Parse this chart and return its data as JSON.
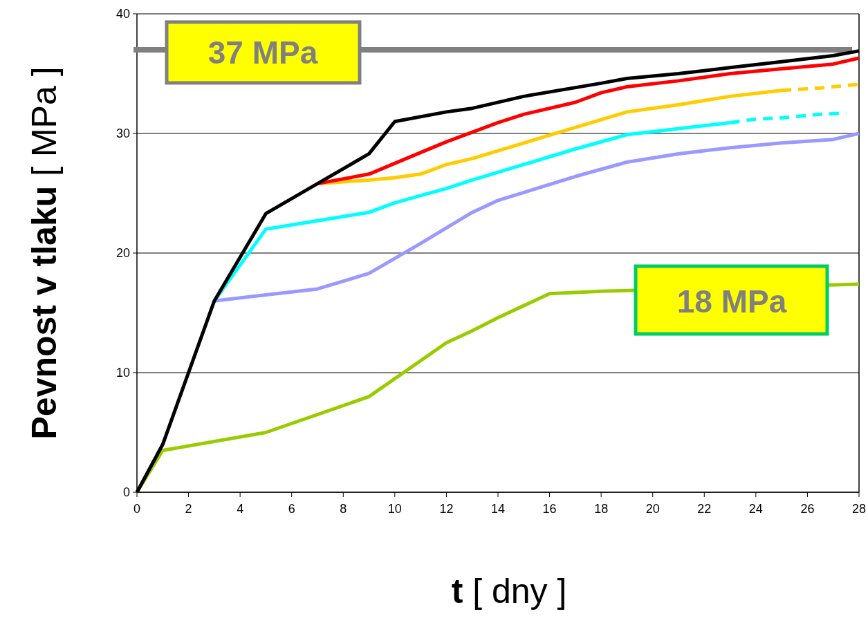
{
  "chart_data": {
    "type": "line",
    "xlabel": "t  [ dny ]",
    "ylabel": "Pevnost  v  tlaku  [ MPa ]",
    "xlim": [
      0,
      28
    ],
    "xticks": [
      0,
      2,
      4,
      6,
      8,
      10,
      12,
      14,
      16,
      18,
      20,
      22,
      24,
      26,
      28
    ],
    "ylim": [
      0,
      40
    ],
    "yticks": [
      0,
      10,
      20,
      30,
      40
    ],
    "grid": "y",
    "marker": "none",
    "series": [
      {
        "color": "#9999ff",
        "line_style": "solid",
        "x": [
          3,
          5,
          7,
          9,
          11,
          12,
          13,
          14,
          17,
          19,
          21,
          23,
          25,
          27,
          28
        ],
        "values": [
          16,
          16.5,
          17,
          18.3,
          20.8,
          22.1,
          23.4,
          24.4,
          26.4,
          27.6,
          28.3,
          28.8,
          29.2,
          29.5,
          30
        ]
      },
      {
        "color": "#00ffff",
        "line_style": "solid",
        "x": [
          3,
          5,
          7,
          9,
          10,
          11,
          12,
          13,
          15,
          17,
          19,
          23
        ],
        "values": [
          16,
          22,
          22.7,
          23.4,
          24.2,
          24.8,
          25.4,
          26.1,
          27.4,
          28.7,
          29.9,
          30.9
        ]
      },
      {
        "color": "#00ffff",
        "line_style": "dashed",
        "x": [
          23,
          24,
          25,
          26.5,
          27.5
        ],
        "values": [
          30.9,
          31.2,
          31.3,
          31.6,
          31.7
        ]
      },
      {
        "color": "#ffcc00",
        "line_style": "solid",
        "x": [
          7,
          9,
          10,
          11,
          12,
          13,
          19,
          21,
          23,
          25
        ],
        "values": [
          25.8,
          26.1,
          26.3,
          26.6,
          27.4,
          27.9,
          31.8,
          32.4,
          33.1,
          33.6
        ]
      },
      {
        "color": "#ffcc00",
        "line_style": "dashed",
        "x": [
          25,
          26.5,
          28
        ],
        "values": [
          33.6,
          33.8,
          34.1
        ]
      },
      {
        "color": "#ff0000",
        "line_style": "solid",
        "x": [
          7,
          9,
          11,
          12,
          14,
          15,
          17,
          18,
          19,
          21,
          23,
          25,
          27,
          28
        ],
        "values": [
          25.8,
          26.6,
          28.4,
          29.3,
          30.9,
          31.6,
          32.6,
          33.4,
          33.9,
          34.4,
          35,
          35.4,
          35.8,
          36.3
        ]
      },
      {
        "color": "#99cc00",
        "line_style": "solid",
        "x": [
          0,
          1,
          5,
          9,
          11,
          12,
          13,
          14,
          15,
          16,
          18,
          28
        ],
        "values": [
          0,
          3.5,
          5,
          8,
          11,
          12.5,
          13.5,
          14.6,
          15.6,
          16.6,
          16.8,
          17.4
        ]
      },
      {
        "color": "#000000",
        "line_style": "solid",
        "x": [
          0,
          1,
          3,
          5,
          7,
          9,
          10,
          12,
          13,
          15,
          18,
          19,
          21,
          23,
          25,
          27,
          28
        ],
        "values": [
          0,
          4,
          16,
          23.3,
          25.8,
          28.3,
          31,
          31.8,
          32.1,
          33.1,
          34.2,
          34.6,
          35,
          35.5,
          36,
          36.5,
          36.9
        ]
      }
    ],
    "ref_lines": [
      {
        "axis": "y",
        "value": 37,
        "label": "37 MPa",
        "color": "#808080",
        "line_style": "solid"
      }
    ],
    "annotations": [
      "18 MPa"
    ]
  }
}
